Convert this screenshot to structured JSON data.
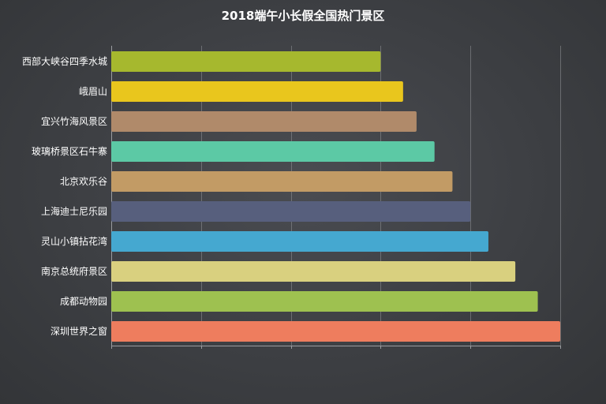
{
  "chart_data": {
    "type": "bar",
    "orientation": "horizontal",
    "title": "2018端午小长假全国热门景区",
    "categories": [
      "西部大峡谷四季水城",
      "峨眉山",
      "宜兴竹海风景区",
      "玻璃桥景区石牛寨",
      "北京欢乐谷",
      "上海迪士尼乐园",
      "灵山小镇拈花湾",
      "南京总统府景区",
      "成都动物园",
      "深圳世界之窗"
    ],
    "values": [
      60,
      65,
      68,
      72,
      76,
      80,
      84,
      90,
      95,
      100
    ],
    "colors": [
      "#a6b82e",
      "#e9c61d",
      "#b08a6a",
      "#5cc9a5",
      "#c29b65",
      "#575f7d",
      "#45a8d0",
      "#d9d07f",
      "#9ec150",
      "#ee7d5e"
    ],
    "xlim": [
      0,
      100
    ],
    "grid": true,
    "legend": "none",
    "xlabel": "",
    "ylabel": ""
  }
}
